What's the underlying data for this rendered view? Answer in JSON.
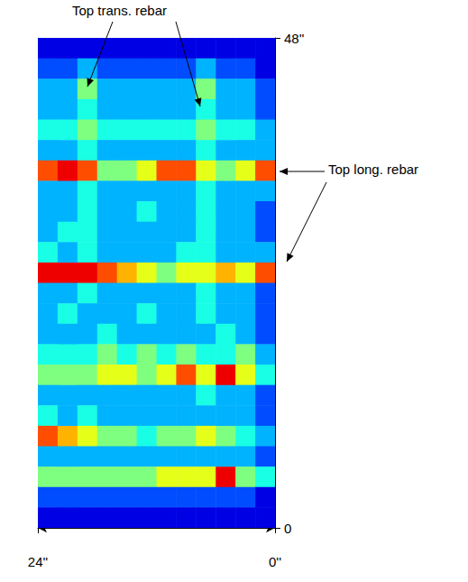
{
  "chart_data": {
    "type": "heatmap",
    "annotations": [
      "Top trans. rebar",
      "Top long. rebar"
    ],
    "xlim": [
      24,
      0
    ],
    "xticks": [
      {
        "value": 24,
        "label": "24''"
      },
      {
        "value": 0,
        "label": "0''"
      }
    ],
    "ylim": [
      0,
      48
    ],
    "yticks": [
      0,
      {
        "value": 48,
        "label": "48''"
      }
    ],
    "grid": false,
    "zlim": [
      0,
      10
    ],
    "x_edges": [
      24,
      22,
      20,
      18,
      16,
      14,
      12,
      10,
      8,
      6,
      4,
      2,
      0
    ],
    "y_edges": [
      48,
      46,
      44,
      42,
      40,
      38,
      36,
      34,
      32,
      30,
      28,
      26,
      24,
      22,
      20,
      18,
      16,
      14,
      12,
      10,
      8,
      6,
      4,
      2,
      0
    ],
    "cells": [
      [
        1,
        1,
        1,
        1,
        1,
        1,
        1,
        1,
        1,
        1,
        1,
        1
      ],
      [
        2,
        2,
        3,
        2,
        2,
        2,
        2,
        2,
        3,
        2,
        2,
        1
      ],
      [
        3,
        3,
        5,
        3,
        3,
        3,
        3,
        3,
        5,
        3,
        3,
        2
      ],
      [
        3,
        3,
        4,
        3,
        3,
        3,
        3,
        3,
        4,
        3,
        3,
        2
      ],
      [
        4,
        4,
        5,
        4,
        4,
        4,
        4,
        4,
        5,
        4,
        4,
        3
      ],
      [
        3,
        3,
        4,
        3,
        3,
        3,
        3,
        3,
        4,
        3,
        3,
        3
      ],
      [
        8,
        9,
        8,
        5,
        5,
        6,
        8,
        8,
        6,
        5,
        6,
        8
      ],
      [
        3,
        3,
        4,
        3,
        3,
        3,
        3,
        3,
        4,
        3,
        3,
        3
      ],
      [
        3,
        3,
        4,
        3,
        3,
        4,
        3,
        3,
        4,
        3,
        3,
        2
      ],
      [
        3,
        4,
        4,
        3,
        3,
        3,
        3,
        3,
        4,
        3,
        3,
        2
      ],
      [
        4,
        3,
        4,
        3,
        3,
        3,
        3,
        4,
        4,
        3,
        3,
        3
      ],
      [
        9,
        9,
        9,
        8,
        7,
        6,
        5,
        6,
        6,
        7,
        6,
        8
      ],
      [
        3,
        3,
        4,
        3,
        3,
        3,
        3,
        3,
        4,
        3,
        3,
        2
      ],
      [
        3,
        4,
        3,
        3,
        3,
        4,
        3,
        3,
        4,
        3,
        3,
        2
      ],
      [
        3,
        3,
        3,
        4,
        3,
        3,
        3,
        3,
        3,
        4,
        3,
        2
      ],
      [
        4,
        4,
        4,
        5,
        4,
        5,
        4,
        5,
        4,
        4,
        5,
        3
      ],
      [
        5,
        5,
        5,
        6,
        6,
        5,
        6,
        8,
        6,
        9,
        6,
        4
      ],
      [
        3,
        3,
        3,
        3,
        3,
        3,
        3,
        3,
        4,
        3,
        3,
        2
      ],
      [
        4,
        3,
        4,
        3,
        3,
        3,
        3,
        3,
        3,
        3,
        3,
        2
      ],
      [
        8,
        7,
        6,
        5,
        5,
        4,
        5,
        5,
        6,
        5,
        4,
        3
      ],
      [
        3,
        3,
        3,
        3,
        3,
        3,
        3,
        3,
        3,
        3,
        3,
        2
      ],
      [
        5,
        5,
        5,
        5,
        5,
        5,
        6,
        6,
        6,
        9,
        5,
        4
      ],
      [
        2,
        2,
        2,
        2,
        2,
        2,
        2,
        2,
        2,
        2,
        2,
        1
      ],
      [
        1,
        1,
        1,
        1,
        1,
        1,
        1,
        1,
        1,
        1,
        1,
        1
      ]
    ]
  }
}
